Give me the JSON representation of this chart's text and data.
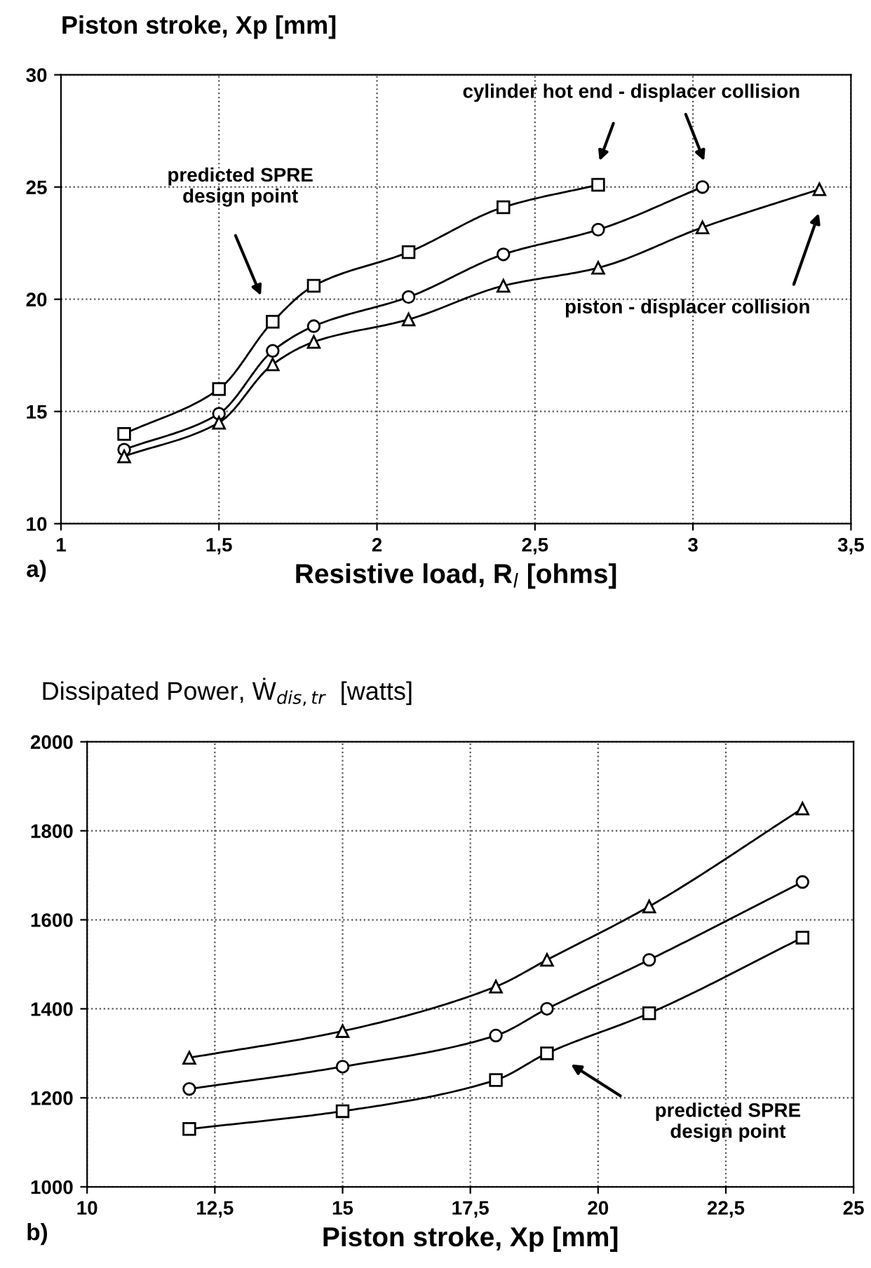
{
  "chart_data": [
    {
      "type": "line",
      "ylabel": "Piston stroke, Xp [mm]",
      "xlabel": "Resistive load, R$_{l}$ [ohms]",
      "series": [
        {
          "color": "#000000",
          "marker": "square",
          "x": [
            1.2,
            1.5,
            1.67,
            1.8,
            2.1,
            2.4,
            2.7
          ],
          "values": [
            14,
            16,
            19,
            20.6,
            22.1,
            24.1,
            25.1
          ]
        },
        {
          "color": "#000000",
          "marker": "circle",
          "x": [
            1.2,
            1.5,
            1.67,
            1.8,
            2.1,
            2.4,
            2.7,
            3.03
          ],
          "values": [
            13.3,
            14.9,
            17.7,
            18.8,
            20.1,
            22,
            23.1,
            25
          ]
        },
        {
          "color": "#000000",
          "marker": "triangle",
          "x": [
            1.2,
            1.5,
            1.67,
            1.8,
            2.1,
            2.4,
            2.7,
            3.03,
            3.4
          ],
          "values": [
            13,
            14.5,
            17.1,
            18.1,
            19.1,
            20.6,
            21.4,
            23.2,
            24.9
          ]
        }
      ],
      "xlim": [
        1,
        3.5
      ],
      "ylim": [
        10,
        30
      ],
      "xticks": [
        1,
        {
          "value": 1.5,
          "label": "1,5"
        },
        2,
        {
          "value": 2.5,
          "label": "2,5"
        },
        3,
        {
          "value": 3.5,
          "label": "3,5"
        }
      ],
      "yticks": [
        10,
        15,
        20,
        25,
        30
      ],
      "grid": true,
      "line_style": "solid",
      "annotations": [
        "predicted SPRE\ndesign point",
        "cylinder hot end - displacer collision",
        "piston - displacer collision",
        "a)"
      ]
    },
    {
      "type": "line",
      "ylabel": "Dissipated Power, Ẇ$_{dis,tr}$  [watts]",
      "xlabel": "Piston stroke, Xp [mm]",
      "series": [
        {
          "color": "#000000",
          "marker": "triangle",
          "x": [
            12,
            15,
            18,
            19,
            21,
            24
          ],
          "values": [
            1290,
            1350,
            1450,
            1510,
            1630,
            1850
          ]
        },
        {
          "color": "#000000",
          "marker": "circle",
          "x": [
            12,
            15,
            18,
            19,
            21,
            24
          ],
          "values": [
            1220,
            1270,
            1340,
            1400,
            1510,
            1685
          ]
        },
        {
          "color": "#000000",
          "marker": "square",
          "x": [
            12,
            15,
            18,
            19,
            21,
            24
          ],
          "values": [
            1130,
            1170,
            1240,
            1300,
            1390,
            1560
          ]
        }
      ],
      "xlim": [
        10,
        25
      ],
      "ylim": [
        1000,
        2000
      ],
      "xticks": [
        10,
        {
          "value": 12.5,
          "label": "12,5"
        },
        15,
        {
          "value": 17.5,
          "label": "17,5"
        },
        20,
        {
          "value": 22.5,
          "label": "22,5"
        },
        25
      ],
      "yticks": [
        1000,
        1200,
        1400,
        1600,
        1800,
        2000
      ],
      "grid": true,
      "line_style": "solid",
      "annotations": [
        "predicted SPRE\ndesign point",
        "b)"
      ]
    }
  ]
}
